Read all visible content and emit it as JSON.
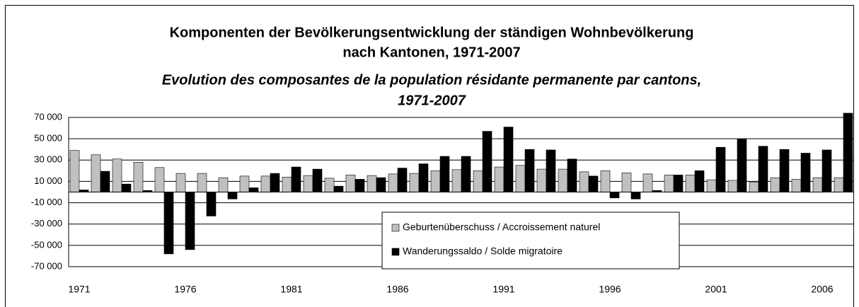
{
  "chart_data": {
    "type": "bar",
    "title": [
      "Komponenten der Bevölkerungsentwicklung der ständigen Wohnbevölkerung",
      "nach Kantonen, 1971-2007",
      "Evolution des composantes de la population résidante permanente par cantons,",
      "1971-2007"
    ],
    "categories": [
      "1971",
      null,
      null,
      null,
      null,
      "1976",
      null,
      null,
      null,
      null,
      "1981",
      null,
      null,
      null,
      null,
      "1986",
      null,
      null,
      null,
      null,
      "1991",
      null,
      null,
      null,
      null,
      "1996",
      null,
      null,
      null,
      null,
      "2001",
      null,
      null,
      null,
      null,
      "2006",
      null
    ],
    "series": [
      {
        "name": "Geburtenüberschuss / Accroissement naturel",
        "color": "#c0c0c0",
        "values": [
          39000,
          35000,
          31000,
          28000,
          23000,
          17500,
          17500,
          13500,
          15000,
          15000,
          14000,
          15500,
          13000,
          16000,
          15500,
          17000,
          17500,
          20000,
          21000,
          20000,
          23500,
          25000,
          21500,
          21500,
          19000,
          20000,
          18000,
          17000,
          16000,
          16000,
          11500,
          11000,
          9500,
          13500,
          12000,
          13500,
          13500
        ]
      },
      {
        "name": "Wanderungssaldo / Solde migratoire",
        "color": "#000000",
        "values": [
          2000,
          19500,
          7500,
          1500,
          -58000,
          -54000,
          -22500,
          -6500,
          4000,
          17500,
          23500,
          21500,
          5500,
          12000,
          13500,
          22500,
          26500,
          33500,
          33500,
          57000,
          61000,
          40000,
          39500,
          31000,
          15000,
          -5500,
          -6500,
          1500,
          16000,
          20000,
          42000,
          49500,
          43000,
          40000,
          36500,
          39500,
          74000
        ]
      }
    ],
    "ylim": [
      -70000,
      70000
    ],
    "yticks": [
      {
        "value": 70000,
        "label": "70 000"
      },
      {
        "value": 50000,
        "label": "50 000"
      },
      {
        "value": 30000,
        "label": "30 000"
      },
      {
        "value": 10000,
        "label": "10 000"
      },
      {
        "value": -10000,
        "label": "-10 000"
      },
      {
        "value": -30000,
        "label": "-30 000"
      },
      {
        "value": -50000,
        "label": "-50 000"
      },
      {
        "value": -70000,
        "label": "-70 000"
      }
    ],
    "grid": true
  }
}
